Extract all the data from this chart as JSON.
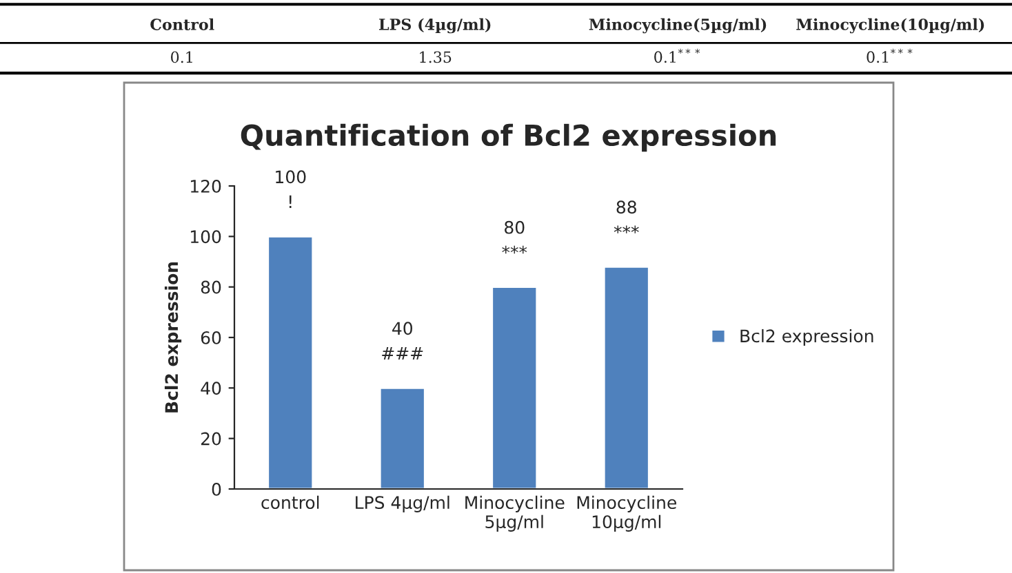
{
  "chart_data": [
    {
      "type": "other",
      "annotations": [
        "Control",
        "LPS (4µg/ml)",
        "Minocycline(5µg/ml)",
        "Minocycline(10µg/ml)",
        "0.1",
        "1.35",
        "0.1$^{***}$",
        "0.1$^{***}$"
      ]
    },
    {
      "type": "bar",
      "title": "Quantification of Bcl2 expression",
      "ylabel": "Bcl2 expression",
      "categories": [
        "control",
        "LPS 4µg/ml",
        "Minocycline\n5µg/ml",
        "Minocycline\n10µg/ml"
      ],
      "series": [
        {
          "name": "Bcl2 expression",
          "color": "#4f81bd",
          "values": [
            100,
            40,
            80,
            88
          ]
        }
      ],
      "ylim": [
        0,
        120
      ],
      "yticks": [
        0,
        20,
        40,
        60,
        80,
        100,
        120
      ],
      "grid": false,
      "legend": "right",
      "data_labels": true,
      "annotations": [
        {
          "text": "!",
          "x": "control",
          "y": 100
        },
        {
          "text": "###",
          "x": "LPS 4µg/ml",
          "y": 40
        },
        {
          "text": "***",
          "x": "Minocycline\n5µg/ml",
          "y": 80
        },
        {
          "text": "***",
          "x": "Minocycline\n10µg/ml",
          "y": 88
        }
      ]
    }
  ]
}
